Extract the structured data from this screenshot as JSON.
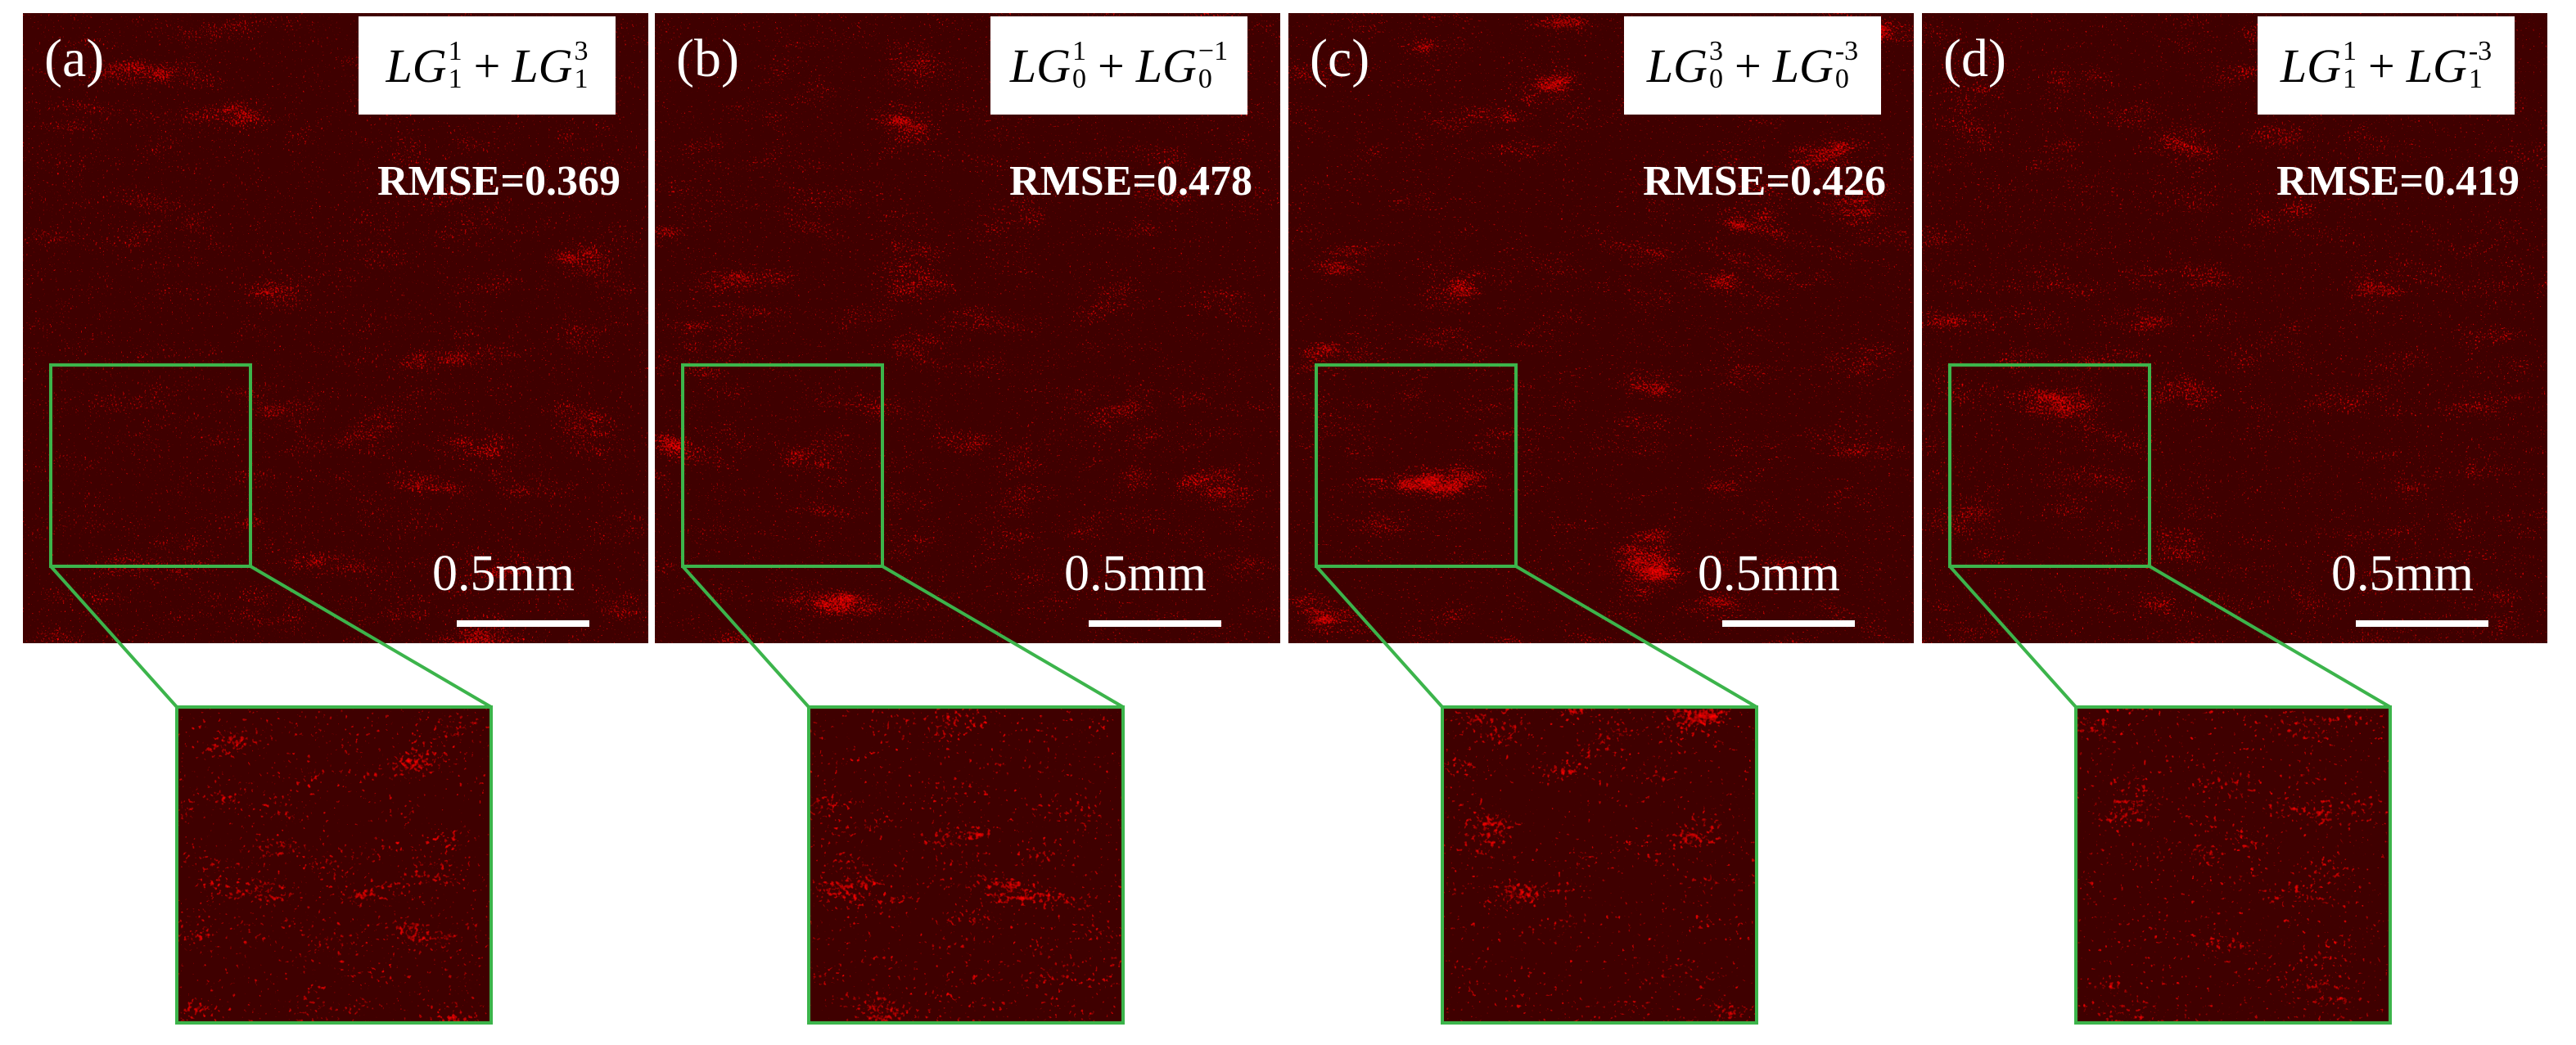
{
  "panels": [
    {
      "label": "(a)",
      "formula": [
        {
          "base": "LG",
          "sub": "1",
          "sup": "1"
        },
        {
          "base": "LG",
          "sub": "1",
          "sup": "3"
        }
      ],
      "operator": "+",
      "rmse": "RMSE=0.369",
      "scale": "0.5mm"
    },
    {
      "label": "(b)",
      "formula": [
        {
          "base": "LG",
          "sub": "0",
          "sup": "1"
        },
        {
          "base": "LG",
          "sub": "0",
          "sup": "−1"
        }
      ],
      "operator": "+",
      "rmse": "RMSE=0.478",
      "scale": "0.5mm"
    },
    {
      "label": "(c)",
      "formula": [
        {
          "base": "LG",
          "sub": "0",
          "sup": "3"
        },
        {
          "base": "LG",
          "sub": "0",
          "sup": "-3"
        }
      ],
      "operator": "+",
      "rmse": "RMSE=0.426",
      "scale": "0.5mm"
    },
    {
      "label": "(d)",
      "formula": [
        {
          "base": "LG",
          "sub": "1",
          "sup": "1"
        },
        {
          "base": "LG",
          "sub": "1",
          "sup": "-3"
        }
      ],
      "operator": "+",
      "rmse": "RMSE=0.419",
      "scale": "0.5mm"
    }
  ]
}
